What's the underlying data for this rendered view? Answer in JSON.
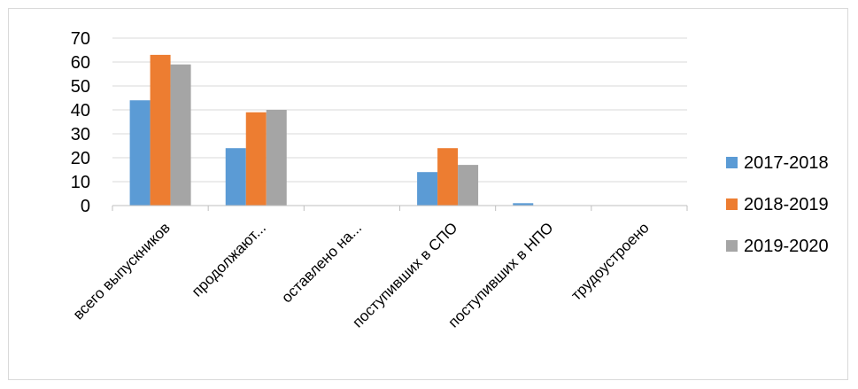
{
  "chart_data": {
    "type": "bar",
    "title": "",
    "xlabel": "",
    "ylabel": "",
    "ylim": [
      0,
      70
    ],
    "yticks": [
      0,
      10,
      20,
      30,
      40,
      50,
      60,
      70
    ],
    "grid": true,
    "legend_position": "right",
    "categories": [
      "всего выпускников",
      "продолжают...",
      "оставлено на...",
      "поступивших в СПО",
      "поступивших в НПО",
      "трудоустроено"
    ],
    "series": [
      {
        "name": "2017-2018",
        "color": "#5B9BD5",
        "values": [
          44,
          24,
          0,
          14,
          1,
          0
        ]
      },
      {
        "name": "2018-2019",
        "color": "#ED7D31",
        "values": [
          63,
          39,
          0,
          24,
          0,
          0
        ]
      },
      {
        "name": "2019-2020",
        "color": "#A5A5A5",
        "values": [
          59,
          40,
          0,
          17,
          0,
          0
        ]
      }
    ]
  }
}
